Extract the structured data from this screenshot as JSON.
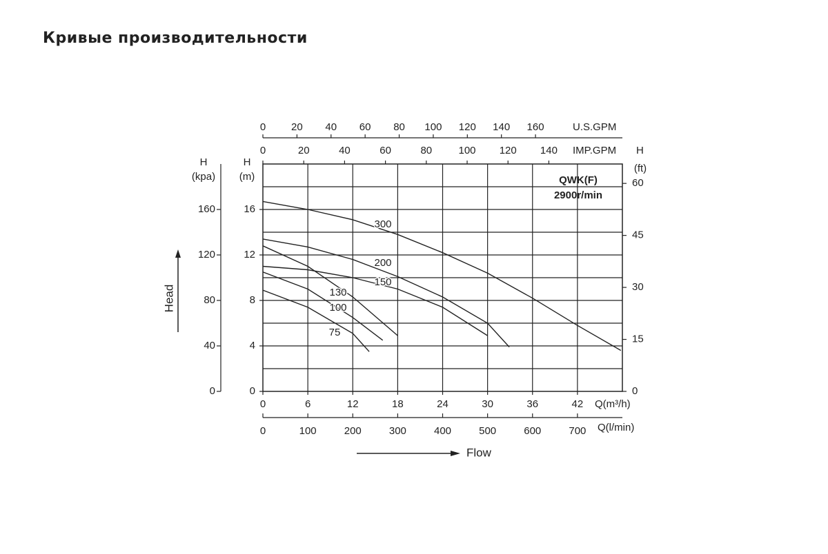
{
  "title": "Кривые производительности",
  "chart_data": {
    "type": "line",
    "annotations": [
      "QWK(F)",
      "2900r/min"
    ],
    "head_label": "Head",
    "flow_label": "Flow",
    "xlabel": "Q(m³/h)",
    "xlim": [
      0,
      48
    ],
    "xticks": [
      0,
      6,
      12,
      18,
      24,
      30,
      36,
      42
    ],
    "x2label": "Q(l/min)",
    "x2lim": [
      0,
      800
    ],
    "x2ticks": [
      0,
      100,
      200,
      300,
      400,
      500,
      600,
      700
    ],
    "x3label": "U.S.GPM",
    "x3lim": [
      0,
      211
    ],
    "x3ticks": [
      0,
      20,
      40,
      60,
      80,
      100,
      120,
      140,
      160
    ],
    "x4label": "IMP.GPM",
    "x4lim": [
      0,
      176
    ],
    "x4ticks": [
      0,
      20,
      40,
      60,
      80,
      100,
      120,
      140
    ],
    "ylabel": "H",
    "yunit": "(m)",
    "ylim": [
      0,
      20
    ],
    "yticks": [
      0,
      4,
      8,
      12,
      16
    ],
    "y2label": "H",
    "y2unit": "(kpa)",
    "y2lim": [
      0,
      200
    ],
    "y2ticks": [
      0,
      40,
      80,
      120,
      160
    ],
    "y3label": "H",
    "y3unit": "(ft)",
    "y3lim": [
      0,
      65.6
    ],
    "y3ticks": [
      0,
      15,
      30,
      45,
      60
    ],
    "xgrid": [
      6,
      12,
      18,
      24,
      30,
      36,
      42
    ],
    "ygrid": [
      2,
      4,
      6,
      8,
      10,
      12,
      14,
      16,
      18
    ],
    "color": "#222222",
    "series": [
      {
        "name": "300",
        "x": [
          0,
          6,
          12,
          18,
          24,
          30,
          36,
          42,
          47.8
        ],
        "values": [
          16.7,
          16.0,
          15.1,
          13.8,
          12.2,
          10.4,
          8.2,
          5.8,
          3.6
        ]
      },
      {
        "name": "200",
        "x": [
          0,
          6,
          12,
          18,
          24,
          30,
          32.9
        ],
        "values": [
          13.4,
          12.7,
          11.6,
          10.1,
          8.3,
          6.0,
          3.9
        ]
      },
      {
        "name": "150",
        "x": [
          0,
          6,
          12,
          18,
          24,
          30
        ],
        "values": [
          11.0,
          10.7,
          10.0,
          9.0,
          7.4,
          4.9
        ]
      },
      {
        "name": "130",
        "x": [
          0,
          6,
          12,
          18
        ],
        "values": [
          12.8,
          11.0,
          8.3,
          4.9
        ]
      },
      {
        "name": "100",
        "x": [
          0,
          6,
          12,
          16
        ],
        "values": [
          10.5,
          9.0,
          6.5,
          4.5
        ]
      },
      {
        "name": "75",
        "x": [
          0,
          6,
          12,
          14.2
        ],
        "values": [
          8.9,
          7.4,
          5.1,
          3.5
        ]
      }
    ]
  }
}
